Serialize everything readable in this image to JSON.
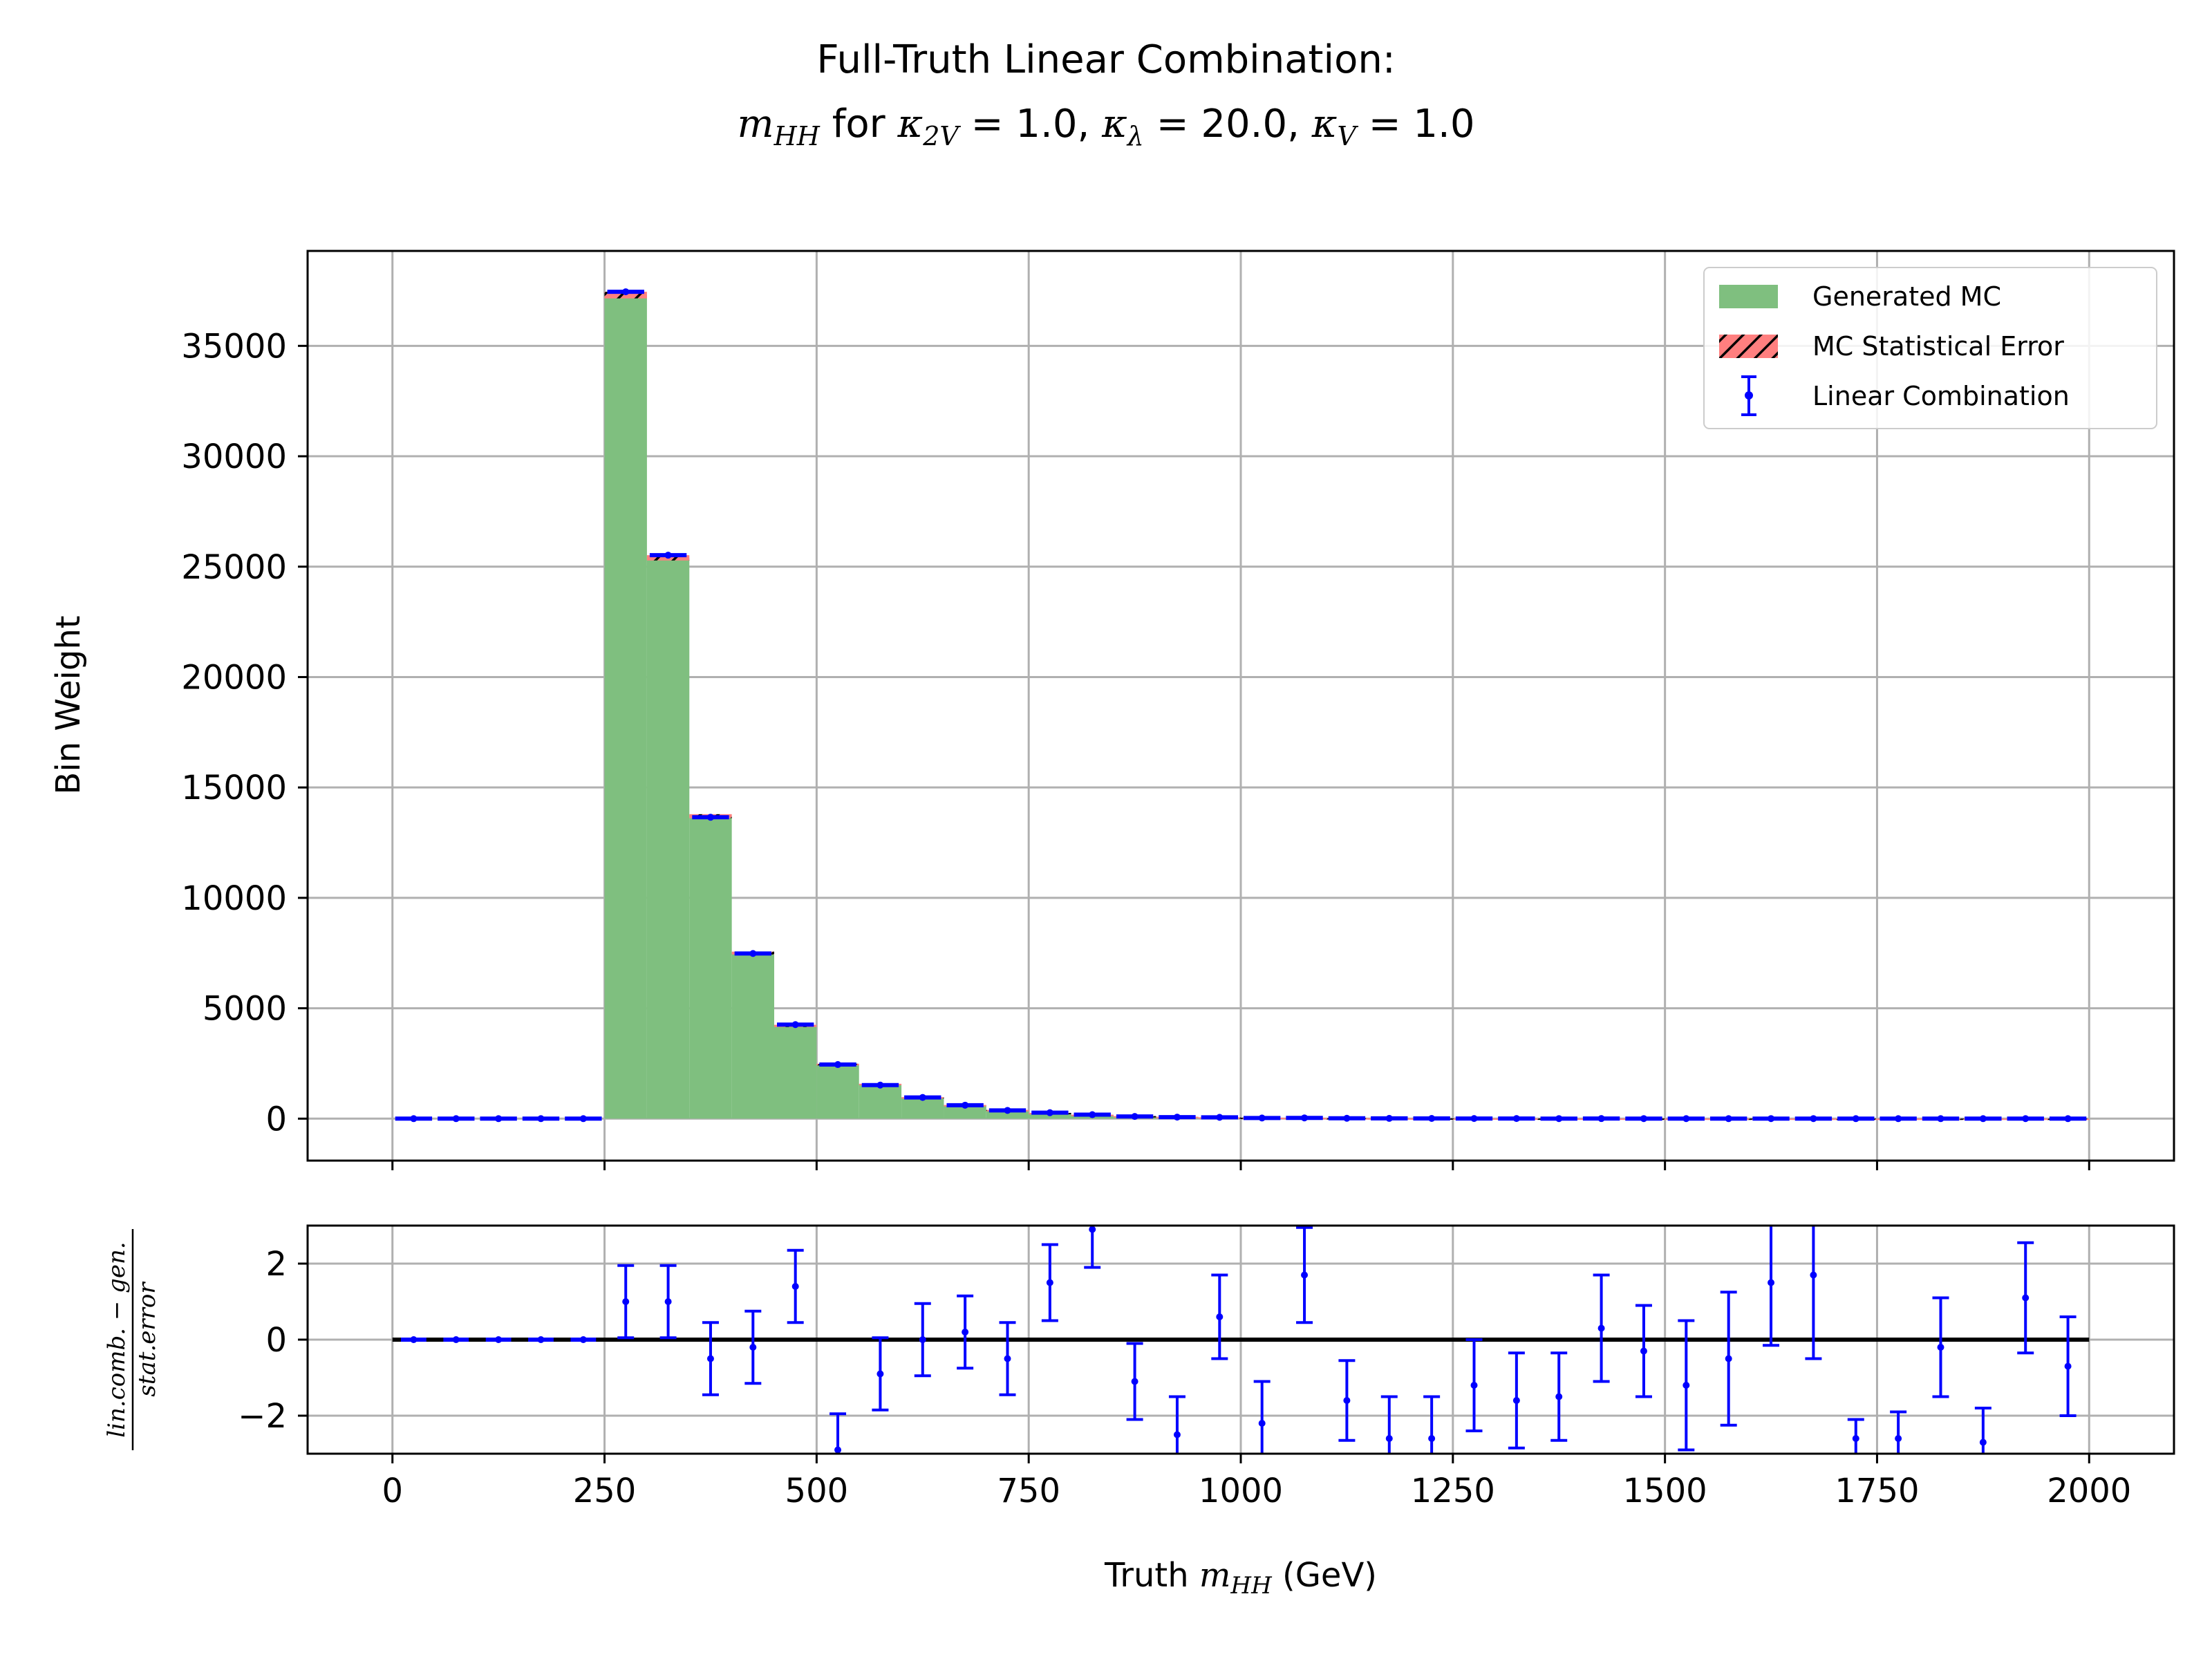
{
  "title": {
    "line1": "Full-Truth Linear Combination:",
    "line2_m": "m",
    "line2_m_sub": "HH",
    "line2_for": " for ",
    "k1": "κ",
    "k1_sub": "2V",
    "k1_val": " = 1.0, ",
    "k2": "κ",
    "k2_sub": "λ",
    "k2_val": " = 20.0, ",
    "k3": "κ",
    "k3_sub": "V",
    "k3_val": " = 1.0"
  },
  "colors": {
    "mc_fill": "#7fbf7f",
    "mc_error": "#ff7f7f",
    "lincomb": "#0000ff",
    "grid": "#b0b0b0",
    "zero_line": "#000000"
  },
  "chart_data": [
    {
      "type": "bar",
      "panel": "main",
      "ylabel": "Bin Weight",
      "xlim": [
        -100,
        2100
      ],
      "ylim": [
        -1900,
        39300
      ],
      "xticks": [
        0,
        250,
        500,
        750,
        1000,
        1250,
        1500,
        1750,
        2000
      ],
      "yticks": [
        0,
        5000,
        10000,
        15000,
        20000,
        25000,
        30000,
        35000
      ],
      "grid": true,
      "legend_position": "top-right",
      "bin_width": 50,
      "bin_centers": [
        25,
        75,
        125,
        175,
        225,
        275,
        325,
        375,
        425,
        475,
        525,
        575,
        625,
        675,
        725,
        775,
        825,
        875,
        925,
        975,
        1025,
        1075,
        1125,
        1175,
        1225,
        1275,
        1325,
        1375,
        1425,
        1475,
        1525,
        1575,
        1625,
        1675,
        1725,
        1775,
        1825,
        1875,
        1925,
        1975
      ],
      "series": [
        {
          "name": "Generated MC",
          "values": [
            0,
            0,
            0,
            0,
            0,
            37300,
            25400,
            13700,
            7500,
            4200,
            2450,
            1550,
            950,
            600,
            380,
            250,
            170,
            110,
            80,
            55,
            40,
            30,
            22,
            16,
            12,
            9,
            7,
            5,
            4,
            3,
            3,
            2,
            2,
            1,
            1,
            1,
            1,
            1,
            1,
            1
          ]
        },
        {
          "name": "MC Statistical Error",
          "values": [
            0,
            0,
            0,
            0,
            0,
            150,
            120,
            90,
            65,
            50,
            38,
            30,
            24,
            19,
            15,
            12,
            10,
            8,
            6,
            5,
            4,
            3,
            3,
            2,
            2,
            2,
            1,
            1,
            1,
            1,
            1,
            1,
            1,
            1,
            1,
            1,
            1,
            1,
            1,
            1
          ]
        },
        {
          "name": "Linear Combination",
          "values": [
            0,
            0,
            0,
            0,
            0,
            37450,
            25520,
            13650,
            7480,
            4260,
            2450,
            1520,
            960,
            610,
            375,
            270,
            180,
            100,
            70,
            60,
            30,
            35,
            18,
            12,
            9,
            6,
            5,
            3,
            4,
            3,
            2,
            1,
            3,
            3,
            0,
            0,
            1,
            0,
            2,
            1
          ],
          "errors": [
            0,
            0,
            0,
            0,
            0,
            130,
            110,
            85,
            60,
            45,
            35,
            28,
            22,
            18,
            14,
            11,
            9,
            7,
            6,
            5,
            4,
            3,
            3,
            2,
            2,
            2,
            1,
            1,
            1,
            1,
            1,
            1,
            1,
            1,
            1,
            1,
            1,
            1,
            1,
            1
          ]
        }
      ]
    },
    {
      "type": "scatter",
      "panel": "ratio",
      "xlabel": "Truth m_HH (GeV)",
      "ylabel": "lin.comb. − gen. / stat.error",
      "xlim": [
        -100,
        2100
      ],
      "ylim": [
        -3,
        3
      ],
      "xticks": [
        0,
        250,
        500,
        750,
        1000,
        1250,
        1500,
        1750,
        2000
      ],
      "yticks": [
        -2,
        0,
        2
      ],
      "grid": true,
      "reference_line": 0,
      "x": [
        25,
        75,
        125,
        175,
        225,
        275,
        325,
        375,
        425,
        475,
        525,
        575,
        625,
        675,
        725,
        775,
        825,
        875,
        925,
        975,
        1025,
        1075,
        1125,
        1175,
        1225,
        1275,
        1325,
        1375,
        1425,
        1475,
        1525,
        1575,
        1625,
        1675,
        1725,
        1775,
        1825,
        1875,
        1925,
        1975
      ],
      "values": [
        0,
        0,
        0,
        0,
        0,
        1.0,
        1.0,
        -0.5,
        -0.2,
        1.4,
        -2.9,
        -0.9,
        0.0,
        0.2,
        -0.5,
        1.5,
        2.9,
        -1.1,
        -2.5,
        0.6,
        -2.2,
        1.7,
        -1.6,
        -2.6,
        -2.6,
        -1.2,
        -1.6,
        -1.5,
        0.3,
        -0.3,
        -1.2,
        -0.5,
        1.5,
        1.7,
        -2.6,
        -2.6,
        -0.2,
        -2.7,
        1.1,
        -0.7
      ],
      "errors": [
        0,
        0,
        0,
        0,
        0,
        0.95,
        0.95,
        0.95,
        0.95,
        0.95,
        0.95,
        0.95,
        0.95,
        0.95,
        0.95,
        1.0,
        1.0,
        1.0,
        1.0,
        1.1,
        1.1,
        1.25,
        1.05,
        1.1,
        1.1,
        1.2,
        1.25,
        1.15,
        1.4,
        1.2,
        1.7,
        1.75,
        1.65,
        2.2,
        0.5,
        0.7,
        1.3,
        0.9,
        1.45,
        1.3
      ]
    }
  ],
  "labels": {
    "ylabel_main": "Bin Weight",
    "xlabel_prefix": "Truth ",
    "xlabel_m": "m",
    "xlabel_sub": "HH",
    "xlabel_suffix": " (GeV)",
    "ratio_num": "lin.comb. − gen.",
    "ratio_den": "stat.error"
  }
}
